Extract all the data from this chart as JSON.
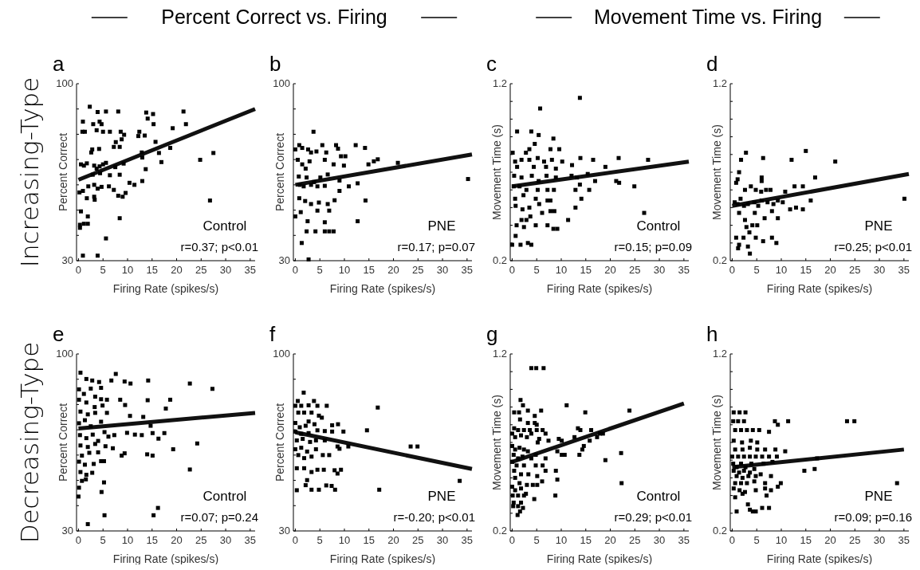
{
  "chart_data": [
    {
      "type": "scatter",
      "title": "a",
      "subtitle": "Percent Correct vs. Firing",
      "xlabel": "Firing Rate (spikes/s)",
      "ylabel": "Percent Correct",
      "xlim": [
        -0.4,
        36
      ],
      "xticks": [
        0,
        5,
        10,
        15,
        20,
        25,
        30,
        35
      ],
      "ylim": [
        30,
        100
      ],
      "yticks": [
        30,
        {
          "value": 40,
          "label": null
        },
        {
          "value": 50,
          "label": null
        },
        {
          "value": 60,
          "label": null
        },
        {
          "value": 70,
          "label": null
        },
        {
          "value": 80,
          "label": null
        },
        {
          "value": 90,
          "label": null
        },
        100
      ],
      "annotations": [
        "Control",
        "r=0.37; p<0.01",
        "Increasing-Type"
      ],
      "series": [
        {
          "marker": "square",
          "color": "#000000",
          "x": [
            2.3,
            0.9,
            0.8,
            1.3,
            3.9,
            5.6,
            8.1,
            4.3,
            4.7,
            3.0,
            3.7,
            5.0,
            6.4,
            8.6,
            9.3,
            8.8,
            7.6,
            7.2,
            8.4,
            2.8,
            2.6,
            4.2,
            13.8,
            15.2,
            14.1,
            15.3,
            12.4,
            13.5,
            12.2,
            15.7,
            21.4,
            21.9,
            19.2,
            18.7,
            16.4,
            16.9,
            12.9,
            13.0,
            13.7,
            24.8,
            27.5,
            26.8,
            0.5,
            1.1,
            1.7,
            3.2,
            3.7,
            4.3,
            5.0,
            2.9,
            4.4,
            5.6,
            7.5,
            9.2,
            6.4,
            8.4,
            10.4,
            11.4,
            13.0,
            0.2,
            0.9,
            2.0,
            3.2,
            3.9,
            4.7,
            6.2,
            7.2,
            8.1,
            9.0,
            9.6,
            1.7,
            3.2,
            3.3,
            0.5,
            0.3,
            1.1,
            1.9,
            1.9,
            8.4,
            5.6,
            0.9,
            3.9,
            0.3
          ],
          "values": [
            90.9,
            85,
            81,
            81,
            88.8,
            89,
            89,
            85,
            84,
            84,
            81.6,
            81,
            81,
            81,
            79.8,
            78,
            76.9,
            75,
            75,
            74,
            72.8,
            74.2,
            88.6,
            88,
            86.2,
            84,
            81,
            79.5,
            79.3,
            77,
            89,
            84,
            82.4,
            74.6,
            72.6,
            69,
            72.8,
            70.8,
            66.2,
            69.9,
            72.6,
            53.8,
            68.1,
            67.6,
            68.5,
            67.6,
            66.4,
            67.3,
            68.1,
            64,
            64.6,
            68.7,
            67,
            68.4,
            63.8,
            64,
            60.8,
            60,
            61.5,
            57,
            57.6,
            59.4,
            60,
            58.5,
            59.2,
            59.4,
            58,
            55.7,
            55.3,
            56.8,
            54.7,
            55.3,
            54.1,
            49.5,
            44.2,
            44.6,
            44.6,
            47.5,
            46.8,
            38.8,
            32,
            32,
            43
          ]
        },
        {
          "type": "line",
          "color": "#111111",
          "x": [
            0,
            36
          ],
          "values": [
            62,
            90
          ]
        }
      ]
    },
    {
      "type": "scatter",
      "title": "b",
      "xlabel": "Firing Rate (spikes/s)",
      "ylabel": "Percent Correct",
      "xlim": [
        -0.4,
        36
      ],
      "xticks": [
        0,
        5,
        10,
        15,
        20,
        25,
        30,
        35
      ],
      "ylim": [
        30,
        100
      ],
      "yticks": [
        30,
        {
          "value": 40,
          "label": null
        },
        {
          "value": 50,
          "label": null
        },
        {
          "value": 60,
          "label": null
        },
        {
          "value": 70,
          "label": null
        },
        {
          "value": 80,
          "label": null
        },
        {
          "value": 90,
          "label": null
        },
        100
      ],
      "annotations": [
        "PNE",
        "r=0.17; p=0.07"
      ],
      "series": [
        {
          "marker": "square",
          "color": "#000000",
          "x": [
            3.7,
            0.8,
            0,
            1.4,
            2.6,
            3.2,
            4.3,
            5.5,
            6.3,
            8.3,
            8.7,
            9.3,
            10.2,
            12.3,
            14.2,
            16,
            16.8,
            14.9,
            20.9,
            35.2,
            0.5,
            1.4,
            2.1,
            2.9,
            6,
            7.8,
            9.9,
            0.7,
            2.3,
            3.8,
            5.1,
            6.6,
            9,
            0.9,
            1.7,
            3.2,
            4.5,
            6,
            10.9,
            12.7,
            9,
            0.8,
            2,
            3.2,
            4.8,
            6.6,
            8,
            14.3,
            4.5,
            6.9,
            1.1,
            0,
            2.5,
            6,
            12.7,
            2.3,
            4.1,
            6,
            6.9,
            7.8,
            1.3,
            2.7
          ],
          "values": [
            81,
            75.7,
            74,
            74.6,
            74,
            72.8,
            73.2,
            75.7,
            72.8,
            75.7,
            74.3,
            71.3,
            71.3,
            75.7,
            74.6,
            69.3,
            70.1,
            68.1,
            68.7,
            62.3,
            69.9,
            68.1,
            66.4,
            69.3,
            69.9,
            68.1,
            67.6,
            63.3,
            62.9,
            61.1,
            62.9,
            64.1,
            61.7,
            60,
            59.4,
            60,
            59.4,
            59.6,
            59.4,
            60.6,
            57.6,
            54.7,
            53.6,
            52.4,
            53,
            52.4,
            53.9,
            53.8,
            49.8,
            49.8,
            49.2,
            47.5,
            45.6,
            45.2,
            45.6,
            41.6,
            41.6,
            41.6,
            41.6,
            41.6,
            37,
            30.5
          ]
        },
        {
          "type": "line",
          "color": "#111111",
          "x": [
            0,
            36
          ],
          "values": [
            60,
            72
          ]
        }
      ]
    },
    {
      "type": "scatter",
      "title": "c",
      "subtitle": "Movement Time vs. Firing",
      "xlabel": "Firing Rate (spikes/s)",
      "ylabel": "Movement Time (s)",
      "xlim": [
        -0.4,
        36
      ],
      "xticks": [
        0,
        5,
        10,
        15,
        20,
        25,
        30,
        35
      ],
      "ylim": [
        0.2,
        1.2
      ],
      "yticks": [
        0.2,
        {
          "value": 0.3,
          "label": null
        },
        {
          "value": 0.4,
          "label": null
        },
        {
          "value": 0.5,
          "label": null
        },
        {
          "value": 0.6,
          "label": null
        },
        {
          "value": 0.7,
          "label": null
        },
        {
          "value": 0.8,
          "label": null
        },
        {
          "value": 0.9,
          "label": null
        },
        {
          "value": 1.0,
          "label": null
        },
        {
          "value": 1.1,
          "label": null
        },
        1.2
      ],
      "annotations": [
        "Control",
        "r=0.15; p=0.09"
      ],
      "series": [
        {
          "marker": "square",
          "color": "#000000",
          "x": [
            13.8,
            5.7,
            1,
            3.9,
            5.4,
            8.4,
            0.1,
            3.5,
            4.6,
            2.8,
            7.8,
            9.6,
            0.6,
            1.9,
            3.5,
            5.2,
            6.5,
            8.1,
            10.2,
            12.2,
            13.9,
            16.5,
            19,
            21.7,
            27.7,
            1,
            4.4,
            6.9,
            8.9,
            0.4,
            1.9,
            4,
            5.4,
            7,
            8.9,
            12.1,
            13.2,
            15.4,
            16.9,
            21.2,
            21.8,
            24.9,
            0.3,
            1.5,
            2.9,
            5.2,
            7.2,
            8.5,
            12.9,
            13.8,
            15.7,
            0.6,
            2.3,
            4.8,
            7.2,
            7.8,
            14.1,
            0.7,
            2.1,
            3.5,
            5.5,
            6.1,
            7.8,
            8.6,
            12.9,
            26.9,
            1.9,
            2.9,
            3.7,
            0.9,
            2.4,
            4.8,
            7.2,
            8.4,
            9.2,
            11.4,
            0.7,
            0,
            1.7,
            3.2,
            3.9
          ],
          "values": [
            1.12,
            1.06,
            0.93,
            0.93,
            0.91,
            0.89,
            0.81,
            0.83,
            0.86,
            0.81,
            0.83,
            0.83,
            0.76,
            0.77,
            0.77,
            0.78,
            0.76,
            0.77,
            0.76,
            0.74,
            0.78,
            0.77,
            0.73,
            0.78,
            0.77,
            0.73,
            0.73,
            0.73,
            0.72,
            0.68,
            0.67,
            0.68,
            0.65,
            0.68,
            0.67,
            0.68,
            0.67,
            0.69,
            0.65,
            0.65,
            0.64,
            0.62,
            0.62,
            0.62,
            0.6,
            0.6,
            0.6,
            0.6,
            0.6,
            0.63,
            0.6,
            0.55,
            0.57,
            0.55,
            0.54,
            0.54,
            0.55,
            0.51,
            0.49,
            0.5,
            0.52,
            0.47,
            0.48,
            0.48,
            0.5,
            0.47,
            0.43,
            0.43,
            0.45,
            0.4,
            0.39,
            0.4,
            0.4,
            0.38,
            0.38,
            0.43,
            0.34,
            0.29,
            0.29,
            0.3,
            0.29
          ]
        },
        {
          "type": "line",
          "color": "#111111",
          "x": [
            0,
            36
          ],
          "values": [
            0.62,
            0.76
          ]
        }
      ]
    },
    {
      "type": "scatter",
      "title": "d",
      "xlabel": "Firing Rate (spikes/s)",
      "ylabel": "Movement Time (s)",
      "xlim": [
        -0.4,
        36
      ],
      "xticks": [
        0,
        5,
        10,
        15,
        20,
        25,
        30,
        35
      ],
      "ylim": [
        0.2,
        1.2
      ],
      "yticks": [
        0.2,
        {
          "value": 0.3,
          "label": null
        },
        {
          "value": 0.4,
          "label": null
        },
        {
          "value": 0.5,
          "label": null
        },
        {
          "value": 0.6,
          "label": null
        },
        {
          "value": 0.7,
          "label": null
        },
        {
          "value": 0.8,
          "label": null
        },
        {
          "value": 0.9,
          "label": null
        },
        {
          "value": 1.0,
          "label": null
        },
        {
          "value": 1.1,
          "label": null
        },
        1.2
      ],
      "annotations": [
        "PNE",
        "r=0.25; p<0.01"
      ],
      "series": [
        {
          "marker": "square",
          "color": "#000000",
          "x": [
            2.8,
            1.8,
            6.3,
            12.1,
            15,
            21,
            35.1,
            1.4,
            1.1,
            0.8,
            6,
            6,
            16.9,
            12.7,
            14.4,
            2.6,
            3.8,
            4.8,
            5.9,
            6.9,
            7.8,
            10.8,
            0.5,
            1.7,
            1.1,
            2.4,
            3.2,
            4.5,
            5.3,
            6,
            7.2,
            8.4,
            9.3,
            10.3,
            11.8,
            13,
            14.4,
            16,
            1.4,
            4.6,
            8.1,
            2.6,
            6.6,
            9.3,
            4.1,
            2.9,
            5.1,
            0.8,
            2.3,
            3.5,
            4.8,
            6.3,
            8.1,
            9,
            1.4,
            3.2,
            1.2,
            3.6
          ],
          "values": [
            0.81,
            0.77,
            0.78,
            0.77,
            0.82,
            0.76,
            0.55,
            0.7,
            0.66,
            0.64,
            0.67,
            0.65,
            0.67,
            0.62,
            0.62,
            0.6,
            0.62,
            0.6,
            0.59,
            0.6,
            0.6,
            0.59,
            0.53,
            0.55,
            0.52,
            0.51,
            0.52,
            0.53,
            0.51,
            0.54,
            0.53,
            0.52,
            0.54,
            0.53,
            0.49,
            0.5,
            0.49,
            0.54,
            0.47,
            0.47,
            0.48,
            0.43,
            0.44,
            0.44,
            0.4,
            0.39,
            0.4,
            0.33,
            0.33,
            0.36,
            0.33,
            0.31,
            0.33,
            0.3,
            0.29,
            0.28,
            0.27,
            0.24
          ]
        },
        {
          "type": "line",
          "color": "#111111",
          "x": [
            0,
            36
          ],
          "values": [
            0.51,
            0.69
          ]
        }
      ]
    },
    {
      "type": "scatter",
      "title": "e",
      "xlabel": "Firing Rate (spikes/s)",
      "ylabel": "Percent Correct",
      "xlim": [
        -0.4,
        36
      ],
      "xticks": [
        0,
        5,
        10,
        15,
        20,
        25,
        30,
        35
      ],
      "ylim": [
        30,
        100
      ],
      "yticks": [
        30,
        {
          "value": 40,
          "label": null
        },
        {
          "value": 50,
          "label": null
        },
        {
          "value": 60,
          "label": null
        },
        {
          "value": 70,
          "label": null
        },
        {
          "value": 80,
          "label": null
        },
        {
          "value": 90,
          "label": null
        },
        100
      ],
      "annotations": [
        "Control",
        "r=0.07; p=0.24",
        "Decreasing-Type"
      ],
      "series": [
        {
          "marker": "square",
          "color": "#000000",
          "x": [
            0.4,
            1.6,
            2.8,
            4.2,
            6.7,
            7.6,
            9.4,
            10.6,
            14.2,
            22.7,
            27.3,
            0.1,
            1.1,
            2.5,
            3.4,
            4.6,
            0.1,
            1.6,
            3.3,
            4.6,
            5.8,
            8.5,
            9.5,
            14.1,
            18.7,
            17.8,
            0.4,
            1.9,
            3.4,
            4.9,
            5.8,
            10.5,
            13.2,
            0.1,
            1.3,
            2.5,
            4.6,
            5.3,
            14.7,
            0.3,
            1.6,
            2.9,
            4,
            6.1,
            7.3,
            9.9,
            11.5,
            12.9,
            15.1,
            17.5,
            16.3,
            24.2,
            0.4,
            1.9,
            3.4,
            5.5,
            7,
            19.3,
            0.7,
            2.2,
            4,
            8.8,
            9.4,
            14,
            15.1,
            0.1,
            1.3,
            3.1,
            4.6,
            5.2,
            22.7,
            0.4,
            1.6,
            2.8,
            0.7,
            1.5,
            0.1,
            0,
            5.2,
            4.7,
            16.2,
            5.3,
            15.3,
            1.9
          ],
          "values": [
            92.6,
            90.1,
            89.5,
            88.9,
            89.5,
            92.1,
            89.1,
            88.3,
            89.5,
            88.3,
            86.2,
            86,
            84.2,
            86.3,
            83.1,
            86.6,
            81.9,
            80.8,
            79,
            82.1,
            81.9,
            81.9,
            79.8,
            81.7,
            81.9,
            78.4,
            77.2,
            76.1,
            76.7,
            79.6,
            76.7,
            75.5,
            75.1,
            72.6,
            73.8,
            71.4,
            73.2,
            69.1,
            71.6,
            67.9,
            66.7,
            68.1,
            65.6,
            67.3,
            67.9,
            68.8,
            68.1,
            67.9,
            68.7,
            68.7,
            66.5,
            64.6,
            63.8,
            63.2,
            64.4,
            63.5,
            62.7,
            62.3,
            59.8,
            60.9,
            61.1,
            59.8,
            60.7,
            60.3,
            59.8,
            57.4,
            56.2,
            56.5,
            57.6,
            57.6,
            54.3,
            53.3,
            52.2,
            53,
            49.8,
            50.4,
            47.1,
            43.6,
            49.2,
            45.4,
            39.1,
            36.2,
            36.2,
            32.7
          ]
        },
        {
          "type": "line",
          "color": "#111111",
          "x": [
            0,
            36
          ],
          "values": [
            70.5,
            76.7
          ]
        }
      ]
    },
    {
      "type": "scatter",
      "title": "f",
      "xlabel": "Firing Rate (spikes/s)",
      "ylabel": "Percent Correct",
      "xlim": [
        -0.4,
        36
      ],
      "xticks": [
        0,
        5,
        10,
        15,
        20,
        25,
        30,
        35
      ],
      "ylim": [
        30,
        100
      ],
      "yticks": [
        30,
        {
          "value": 40,
          "label": null
        },
        {
          "value": 50,
          "label": null
        },
        {
          "value": 60,
          "label": null
        },
        {
          "value": 70,
          "label": null
        },
        {
          "value": 80,
          "label": null
        },
        {
          "value": 90,
          "label": null
        },
        100
      ],
      "annotations": [
        "PNE",
        "r=-0.20; p<0.01"
      ],
      "series": [
        {
          "marker": "square",
          "color": "#000000",
          "x": [
            1.7,
            0.5,
            3.8,
            0,
            1.2,
            2.7,
            4.5,
            6.4,
            16.8,
            0.6,
            1.8,
            3.3,
            4.8,
            5.4,
            2.7,
            0,
            0.9,
            2.1,
            3.9,
            7.5,
            8.7,
            9.8,
            14.6,
            0,
            1.2,
            2.7,
            4.5,
            6,
            7.5,
            0.3,
            1.5,
            3,
            4.2,
            6,
            8.6,
            10.8,
            23.5,
            24.9,
            0,
            1.2,
            2.4,
            4.2,
            5.6,
            6.9,
            9,
            0.6,
            1.8,
            3.3,
            0.3,
            1.8,
            3.3,
            4.5,
            5.8,
            8,
            9.3,
            8.6,
            2.4,
            2.1,
            0.3,
            3.3,
            4.8,
            6.3,
            7.4,
            8.1,
            17.1,
            33.5
          ],
          "values": [
            84.7,
            81.4,
            81.4,
            79.5,
            79.5,
            79.7,
            79.5,
            79.5,
            78.8,
            76.8,
            76.8,
            76.8,
            75.6,
            74.8,
            73.3,
            72.7,
            71,
            71.6,
            72.2,
            71.8,
            72.2,
            69.3,
            69.8,
            69.3,
            68.4,
            68.7,
            69.8,
            69.5,
            69.3,
            65.8,
            66.4,
            65.2,
            65.8,
            65.8,
            63.4,
            63.4,
            63.4,
            63.4,
            62.3,
            62.9,
            61.4,
            62.3,
            60,
            60,
            62.5,
            60,
            58.8,
            59.4,
            54.8,
            54.8,
            53.3,
            54.2,
            54.2,
            54,
            54.2,
            52.7,
            50.1,
            48.1,
            46.1,
            46.3,
            46.3,
            48,
            47.8,
            46.3,
            46.3,
            49.8
          ]
        },
        {
          "type": "line",
          "color": "#111111",
          "x": [
            0,
            36
          ],
          "values": [
            69,
            54.5
          ]
        }
      ]
    },
    {
      "type": "scatter",
      "title": "g",
      "xlabel": "Firing Rate (spikes/s)",
      "ylabel": "Movement Time (s)",
      "xlim": [
        -0.4,
        36
      ],
      "xticks": [
        0,
        5,
        10,
        15,
        20,
        25,
        30,
        35
      ],
      "ylim": [
        0.2,
        1.2
      ],
      "yticks": [
        0.2,
        {
          "value": 0.3,
          "label": null
        },
        {
          "value": 0.4,
          "label": null
        },
        {
          "value": 0.5,
          "label": null
        },
        {
          "value": 0.6,
          "label": null
        },
        {
          "value": 0.7,
          "label": null
        },
        {
          "value": 0.8,
          "label": null
        },
        {
          "value": 0.9,
          "label": null
        },
        {
          "value": 1.0,
          "label": null
        },
        {
          "value": 1.1,
          "label": null
        },
        1.2
      ],
      "annotations": [
        "Control",
        "r=0.29; p<0.01"
      ],
      "series": [
        {
          "marker": "square",
          "color": "#000000",
          "x": [
            3.9,
            4.9,
            6.4,
            1.7,
            2.2,
            0.4,
            1.4,
            3.2,
            4.6,
            5.9,
            11.1,
            14.9,
            23.9,
            1.6,
            3.2,
            4.6,
            5,
            0.4,
            1.2,
            2.4,
            3.6,
            5,
            6.2,
            6.8,
            0,
            0.6,
            1.8,
            3,
            3.9,
            5.5,
            5.2,
            7.4,
            13.4,
            13.9,
            16.1,
            17.9,
            18.5,
            17.3,
            15.8,
            9.5,
            10.1,
            12.7,
            14.6,
            14.3,
            13.7,
            9.2,
            10.1,
            10.7,
            22.2,
            19,
            0,
            0.6,
            1.5,
            2.4,
            3.2,
            0.3,
            1.2,
            2.1,
            3.9,
            4.8,
            6.8,
            0,
            0.9,
            2.4,
            4.8,
            6.2,
            6.8,
            8.9,
            0.4,
            1.8,
            3.3,
            5.1,
            6.1,
            9.2,
            0.6,
            1.5,
            3,
            4.2,
            5.1,
            22.3,
            0,
            0.6,
            1.8,
            2.8,
            0.1,
            1.2,
            2.4,
            4.5,
            8.8,
            0.3,
            1.2,
            1.8,
            2.2,
            0.2,
            1.1,
            1.6
          ],
          "values": [
            1.12,
            1.12,
            1.12,
            0.94,
            0.91,
            0.87,
            0.87,
            0.88,
            0.85,
            0.88,
            0.91,
            0.87,
            0.88,
            0.83,
            0.81,
            0.81,
            0.8,
            0.78,
            0.77,
            0.77,
            0.77,
            0.77,
            0.77,
            0.75,
            0.75,
            0.73,
            0.74,
            0.73,
            0.75,
            0.72,
            0.7,
            0.71,
            0.78,
            0.77,
            0.77,
            0.75,
            0.75,
            0.73,
            0.71,
            0.72,
            0.71,
            0.73,
            0.68,
            0.66,
            0.63,
            0.65,
            0.63,
            0.63,
            0.64,
            0.6,
            0.68,
            0.66,
            0.67,
            0.66,
            0.65,
            0.63,
            0.61,
            0.62,
            0.61,
            0.63,
            0.61,
            0.59,
            0.57,
            0.57,
            0.57,
            0.57,
            0.54,
            0.54,
            0.54,
            0.52,
            0.52,
            0.51,
            0.48,
            0.49,
            0.5,
            0.47,
            0.46,
            0.46,
            0.46,
            0.47,
            0.45,
            0.43,
            0.44,
            0.41,
            0.4,
            0.4,
            0.4,
            0.38,
            0.4,
            0.36,
            0.34,
            0.36,
            0.33,
            0.34,
            0.29,
            0.31
          ]
        },
        {
          "type": "line",
          "color": "#111111",
          "x": [
            0,
            35
          ],
          "values": [
            0.59,
            0.92
          ]
        }
      ]
    },
    {
      "type": "scatter",
      "title": "h",
      "xlabel": "Firing Rate (spikes/s)",
      "ylabel": "Movement Time (s)",
      "xlim": [
        -0.4,
        36
      ],
      "xticks": [
        0,
        5,
        10,
        15,
        20,
        25,
        30,
        35
      ],
      "ylim": [
        0.2,
        1.2
      ],
      "yticks": [
        0.2,
        {
          "value": 0.3,
          "label": null
        },
        {
          "value": 0.4,
          "label": null
        },
        {
          "value": 0.5,
          "label": null
        },
        {
          "value": 0.6,
          "label": null
        },
        {
          "value": 0.7,
          "label": null
        },
        {
          "value": 0.8,
          "label": null
        },
        {
          "value": 0.9,
          "label": null
        },
        {
          "value": 1.0,
          "label": null
        },
        {
          "value": 1.1,
          "label": null
        },
        1.2
      ],
      "annotations": [
        "PNE",
        "r=0.09; p=0.16"
      ],
      "series": [
        {
          "marker": "square",
          "color": "#000000",
          "x": [
            0.3,
            1.5,
            2.7,
            0.2,
            1.2,
            2.4,
            8.7,
            9.3,
            11.4,
            23.4,
            24.9,
            0.6,
            1.8,
            3,
            4.2,
            5.5,
            7.5,
            0.3,
            2,
            3.8,
            5.1,
            0.6,
            2.1,
            3.6,
            5.1,
            6.7,
            8.8,
            10.8,
            0,
            1.2,
            2.4,
            3.6,
            4.8,
            6.1,
            7.5,
            9.1,
            17.3,
            0.2,
            0.9,
            1.8,
            2.7,
            3.9,
            6.4,
            8.2,
            16.8,
            14.7,
            0.3,
            1.4,
            2.4,
            3.6,
            4.5,
            0.9,
            2.1,
            3.3,
            4.8,
            5.8,
            7.9,
            0.6,
            1.8,
            3,
            4.5,
            6.7,
            9.9,
            0.3,
            1.5,
            2.6,
            4.8,
            6.7,
            7.9,
            9.3,
            33.6,
            0.6,
            2.1,
            7,
            3.2,
            3.6,
            4.2,
            4.8,
            6.1,
            7.5,
            0.9
          ],
          "values": [
            0.87,
            0.87,
            0.87,
            0.82,
            0.82,
            0.82,
            0.82,
            0.8,
            0.82,
            0.82,
            0.82,
            0.77,
            0.77,
            0.77,
            0.77,
            0.77,
            0.76,
            0.71,
            0.7,
            0.71,
            0.7,
            0.66,
            0.66,
            0.67,
            0.66,
            0.66,
            0.66,
            0.65,
            0.62,
            0.62,
            0.62,
            0.62,
            0.62,
            0.62,
            0.62,
            0.62,
            0.61,
            0.58,
            0.56,
            0.58,
            0.56,
            0.58,
            0.58,
            0.59,
            0.55,
            0.54,
            0.54,
            0.53,
            0.54,
            0.53,
            0.55,
            0.51,
            0.5,
            0.51,
            0.51,
            0.52,
            0.51,
            0.47,
            0.47,
            0.47,
            0.48,
            0.47,
            0.47,
            0.44,
            0.43,
            0.42,
            0.43,
            0.44,
            0.43,
            0.45,
            0.47,
            0.39,
            0.41,
            0.4,
            0.35,
            0.32,
            0.31,
            0.31,
            0.33,
            0.33,
            0.31
          ]
        },
        {
          "type": "line",
          "color": "#111111",
          "x": [
            0,
            35
          ],
          "values": [
            0.56,
            0.66
          ]
        }
      ]
    }
  ]
}
